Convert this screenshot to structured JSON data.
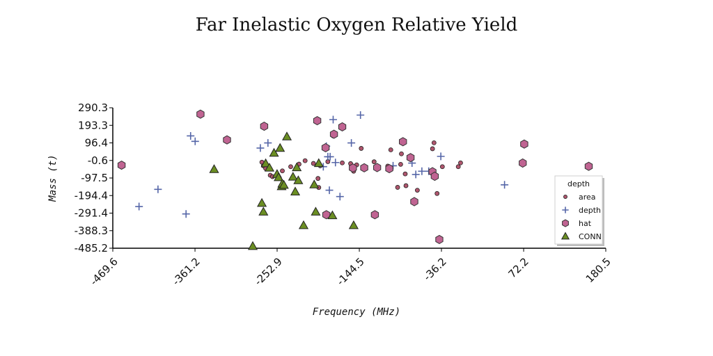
{
  "chart_data": {
    "type": "scatter",
    "title": "Far Inelastic Oxygen Relative Yield",
    "xlabel": "Frequency (MHz)",
    "ylabel": "Mass (t)",
    "xlim": [
      -469.6,
      180.5
    ],
    "ylim": [
      -485.2,
      290.3
    ],
    "x_ticks": [
      "-469.6",
      "-361.2",
      "-252.9",
      "-144.5",
      "-36.2",
      "72.2",
      "180.5"
    ],
    "y_ticks": [
      "290.3",
      "193.3",
      "96.4",
      "-0.6",
      "-97.5",
      "-194.4",
      "-291.4",
      "-388.3",
      "-485.2"
    ],
    "legend": {
      "title": "depth",
      "position": "right"
    },
    "colors": {
      "area": "#b0566e",
      "depth": "#5566a8",
      "hat": "#c06492",
      "CONN": "#6b8e23"
    },
    "series": [
      {
        "name": "area",
        "marker": "circle",
        "points": [
          [
            -273,
            -10
          ],
          [
            -271,
            -30
          ],
          [
            -268,
            -45
          ],
          [
            -262,
            -82
          ],
          [
            -259,
            -90
          ],
          [
            -246,
            -58
          ],
          [
            -235,
            -35
          ],
          [
            -224,
            -21
          ],
          [
            -216,
            -2
          ],
          [
            -205,
            -17
          ],
          [
            -199,
            -100
          ],
          [
            -198,
            -150
          ],
          [
            -196,
            -30
          ],
          [
            -186,
            -7
          ],
          [
            -179,
            135
          ],
          [
            -167,
            -14
          ],
          [
            -156,
            -18
          ],
          [
            -152,
            -60
          ],
          [
            -148,
            -25
          ],
          [
            -142,
            66
          ],
          [
            -125,
            -8
          ],
          [
            -107,
            -32
          ],
          [
            -103,
            58
          ],
          [
            -94,
            -149
          ],
          [
            -90,
            -22
          ],
          [
            -89,
            36
          ],
          [
            -84,
            -75
          ],
          [
            -83,
            -140
          ],
          [
            -68,
            -165
          ],
          [
            -48,
            64
          ],
          [
            -46,
            97
          ],
          [
            -42,
            -183
          ],
          [
            -35,
            -35
          ],
          [
            -14,
            -35
          ],
          [
            -11,
            -14
          ]
        ]
      },
      {
        "name": "depth",
        "marker": "plus",
        "points": [
          [
            -435,
            -255
          ],
          [
            -410,
            -160
          ],
          [
            -373,
            -296
          ],
          [
            -367,
            135
          ],
          [
            -361,
            105
          ],
          [
            -275,
            68
          ],
          [
            -265,
            96
          ],
          [
            -192,
            -35
          ],
          [
            -188,
            78
          ],
          [
            -186,
            20
          ],
          [
            -184,
            -165
          ],
          [
            -183,
            20
          ],
          [
            -179,
            225
          ],
          [
            -176,
            -12
          ],
          [
            -170,
            -200
          ],
          [
            -155,
            96
          ],
          [
            -143,
            250
          ],
          [
            -100,
            -30
          ],
          [
            -75,
            -15
          ],
          [
            -70,
            -78
          ],
          [
            -62,
            -60
          ],
          [
            -53,
            -60
          ],
          [
            -37,
            22
          ],
          [
            47,
            -135
          ]
        ]
      },
      {
        "name": "hat",
        "marker": "hexagon",
        "points": [
          [
            -458,
            -27
          ],
          [
            -354,
            255
          ],
          [
            -319,
            113
          ],
          [
            -270,
            188
          ],
          [
            -200,
            219
          ],
          [
            -189,
            70
          ],
          [
            -188,
            -300
          ],
          [
            -178,
            144
          ],
          [
            -167,
            185
          ],
          [
            -153,
            -42
          ],
          [
            -138,
            -41
          ],
          [
            -124,
            -300
          ],
          [
            -121,
            -40
          ],
          [
            -105,
            -46
          ],
          [
            -87,
            103
          ],
          [
            -77,
            15
          ],
          [
            -72,
            -228
          ],
          [
            -48,
            -63
          ],
          [
            -45,
            -88
          ],
          [
            -39,
            -437
          ],
          [
            71,
            -15
          ],
          [
            73,
            90
          ],
          [
            158,
            -33
          ]
        ]
      },
      {
        "name": "CONN",
        "marker": "triangle",
        "points": [
          [
            -336,
            -50
          ],
          [
            -285,
            -475
          ],
          [
            -273,
            -237
          ],
          [
            -271,
            -285
          ],
          [
            -268,
            -18
          ],
          [
            -263,
            -42
          ],
          [
            -257,
            40
          ],
          [
            -253,
            -77
          ],
          [
            -251,
            -95
          ],
          [
            -249,
            67
          ],
          [
            -247,
            -145
          ],
          [
            -246,
            -130
          ],
          [
            -244,
            -137
          ],
          [
            -240,
            130
          ],
          [
            -232,
            -92
          ],
          [
            -229,
            -174
          ],
          [
            -227,
            -40
          ],
          [
            -225,
            -112
          ],
          [
            -218,
            -360
          ],
          [
            -204,
            -135
          ],
          [
            -202,
            -285
          ],
          [
            -198,
            -17
          ],
          [
            -180,
            -305
          ],
          [
            -152,
            -360
          ]
        ]
      }
    ]
  }
}
